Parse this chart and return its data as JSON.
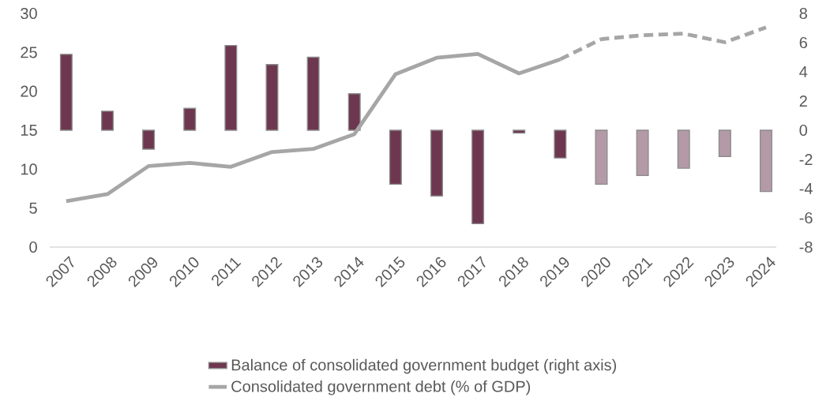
{
  "chart_data": {
    "type": "bar",
    "categories": [
      "2007",
      "2008",
      "2009",
      "2010",
      "2011",
      "2012",
      "2013",
      "2014",
      "2015",
      "2016",
      "2017",
      "2018",
      "2019",
      "2020",
      "2021",
      "2022",
      "2023",
      "2024"
    ],
    "series": [
      {
        "name": "Balance of consolidated government budget (right axis)",
        "axis": "y2",
        "color": "#6e3750",
        "values": [
          5.2,
          1.3,
          -1.3,
          1.5,
          5.8,
          4.5,
          5.0,
          2.5,
          -3.7,
          -4.5,
          -6.4,
          -0.2,
          -1.9,
          null,
          null,
          null,
          null,
          null
        ]
      },
      {
        "axis": "y2",
        "color": "#b39aa6",
        "values": [
          null,
          null,
          null,
          null,
          null,
          null,
          null,
          null,
          null,
          null,
          null,
          null,
          null,
          -3.7,
          -3.1,
          -2.6,
          -1.8,
          -4.2
        ]
      },
      {
        "name": "Consolidated government debt (% of GDP)",
        "type": "line",
        "color": "#a6a6a6",
        "line_style": "solid",
        "values": [
          5.9,
          6.8,
          10.4,
          10.8,
          10.3,
          12.2,
          12.6,
          14.5,
          22.2,
          24.3,
          24.8,
          22.3,
          24.1,
          null,
          null,
          null,
          null,
          null
        ]
      },
      {
        "type": "line",
        "color": "#a6a6a6",
        "line_style": "dashed",
        "values": [
          null,
          null,
          null,
          null,
          null,
          null,
          null,
          null,
          null,
          null,
          null,
          null,
          24.1,
          26.7,
          27.2,
          27.4,
          26.3,
          28.2
        ]
      }
    ],
    "ylim": [
      0,
      30
    ],
    "yticks": [
      0,
      5,
      10,
      15,
      20,
      25,
      30
    ],
    "y2lim": [
      -8,
      8
    ],
    "y2ticks": [
      -8,
      -6,
      -4,
      -2,
      0,
      2,
      4,
      6,
      8
    ],
    "legend": "bottom"
  }
}
